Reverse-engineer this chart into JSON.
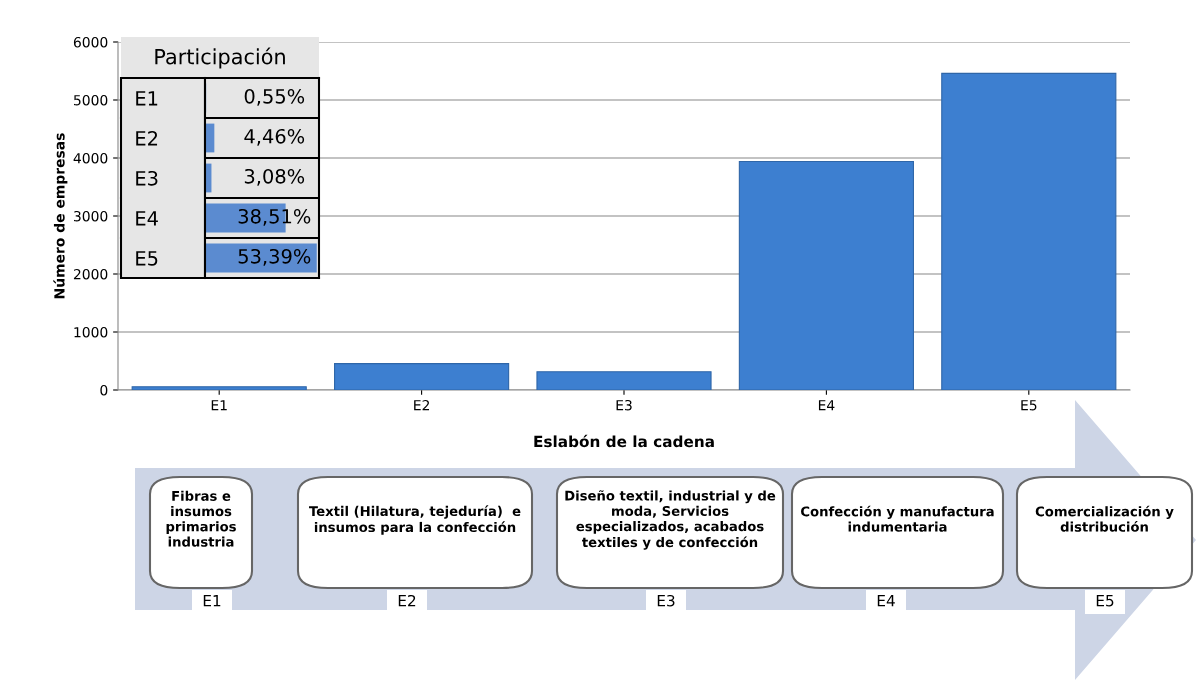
{
  "chart_data": [
    {
      "type": "bar",
      "xlabel": "Eslabón de la cadena",
      "ylabel": "Número de empresas",
      "categories": [
        "E1",
        "E2",
        "E3",
        "E4",
        "E5"
      ],
      "values": [
        55,
        455,
        315,
        3940,
        5460
      ],
      "color": "#3d7fd0",
      "ylim": [
        0,
        6000
      ],
      "yticks": [
        0,
        1000,
        2000,
        3000,
        4000,
        5000,
        6000
      ],
      "grid": "y",
      "annotations": [
        "Fibras e\ninsumos\nprimarios\nindustria",
        "Textil (Hilatura, tejeduría)  e\ninsumos para la confección",
        "Diseño textil, industrial y de\nmoda, Servicios\nespecializados, acabados\ntextiles y de confección",
        "Confección y manufactura\nindumentaria",
        "Comercialización y\ndistribución",
        "E1",
        "E2",
        "E3",
        "E4",
        "E5"
      ]
    },
    {
      "type": "bar",
      "orientation": "horizontal",
      "title": "Participación",
      "categories": [
        "E1",
        "E2",
        "E3",
        "E4",
        "E5"
      ],
      "values": [
        0.55,
        4.46,
        3.08,
        38.51,
        53.39
      ],
      "value_labels": [
        "0,55%",
        "4,46%",
        "3,08%",
        "38,51%",
        "53,39%"
      ],
      "color": "#5b8bd0",
      "tick_labels": "y"
    }
  ]
}
